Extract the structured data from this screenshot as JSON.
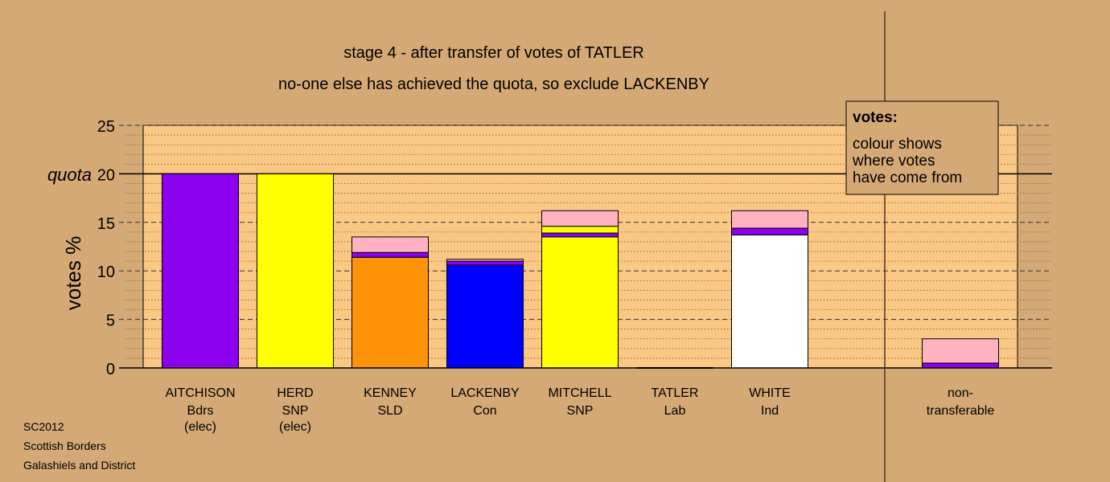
{
  "chart_data": {
    "type": "bar",
    "stacked": true,
    "title": "stage 4 - after transfer of votes of TATLER",
    "subtitle": "no-one else has achieved the quota, so exclude LACKENBY",
    "ylabel": "votes %",
    "ylim": [
      0,
      25
    ],
    "yticks": [
      0,
      5,
      10,
      15,
      20,
      25
    ],
    "quota": 20,
    "quota_label": "quota",
    "grid": true,
    "colors": {
      "Bdrs": "#8b00ee",
      "SNP": "#ffff00",
      "SLD": "#ff9308",
      "Con": "#0000ff",
      "Ind": "#ffffff",
      "Lab": "#ffb2c1",
      "outline": "#000000",
      "plot_area": "#fbc784",
      "background": "#d4a976"
    },
    "categories": [
      {
        "name": "AITCHISON",
        "party": "Bdrs",
        "note": "(elec)"
      },
      {
        "name": "HERD",
        "party": "SNP",
        "note": "(elec)"
      },
      {
        "name": "KENNEY",
        "party": "SLD",
        "note": ""
      },
      {
        "name": "LACKENBY",
        "party": "Con",
        "note": ""
      },
      {
        "name": "MITCHELL",
        "party": "SNP",
        "note": ""
      },
      {
        "name": "TATLER",
        "party": "Lab",
        "note": ""
      },
      {
        "name": "WHITE",
        "party": "Ind",
        "note": ""
      },
      {
        "name": "non-",
        "party": "transferable",
        "note": ""
      }
    ],
    "stacks": [
      [
        {
          "from": "Bdrs",
          "value": 20.0
        }
      ],
      [
        {
          "from": "SNP",
          "value": 20.0
        }
      ],
      [
        {
          "from": "SLD",
          "value": 11.4
        },
        {
          "from": "Bdrs",
          "value": 0.5
        },
        {
          "from": "Lab",
          "value": 1.6
        }
      ],
      [
        {
          "from": "Con",
          "value": 10.6
        },
        {
          "from": "Bdrs",
          "value": 0.4
        },
        {
          "from": "Lab",
          "value": 0.2
        }
      ],
      [
        {
          "from": "SNP",
          "value": 13.5
        },
        {
          "from": "Bdrs",
          "value": 0.4
        },
        {
          "from": "SNP",
          "value": 0.7
        },
        {
          "from": "Lab",
          "value": 1.6
        }
      ],
      [],
      [
        {
          "from": "Ind",
          "value": 13.7
        },
        {
          "from": "Bdrs",
          "value": 0.7
        },
        {
          "from": "Lab",
          "value": 1.8
        }
      ],
      [
        {
          "from": "Bdrs",
          "value": 0.5
        },
        {
          "from": "Lab",
          "value": 2.5
        }
      ]
    ],
    "legend": {
      "position": "top-right",
      "title": "votes:",
      "lines": [
        "colour shows",
        "where votes",
        "have come from"
      ]
    }
  },
  "footer": {
    "line1": "SC2012",
    "line2": "Scottish Borders",
    "line3": "Galashiels and District"
  }
}
